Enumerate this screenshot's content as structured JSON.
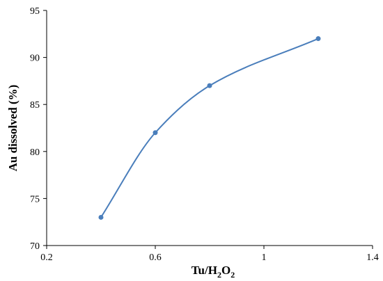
{
  "chart_data": {
    "type": "line",
    "title": "",
    "xlabel_parts": {
      "base": "Tu/H",
      "sub1": "2",
      "mid": "O",
      "sub2": "2"
    },
    "ylabel": "Au dissolved (%)",
    "xlim": [
      0.2,
      1.4
    ],
    "ylim": [
      70,
      95
    ],
    "xticks": [
      0.2,
      0.6,
      1.0,
      1.4
    ],
    "xtick_labels": [
      "0.2",
      "0.6",
      "1",
      "1.4"
    ],
    "yticks": [
      70,
      75,
      80,
      85,
      90,
      95
    ],
    "ytick_labels": [
      "70",
      "75",
      "80",
      "85",
      "90",
      "95"
    ],
    "grid": false,
    "series": [
      {
        "x": [
          0.4,
          0.6,
          0.8,
          1.2
        ],
        "y": [
          73,
          82,
          87,
          92
        ],
        "color": "#4a7ebb",
        "smooth": true,
        "marker": "circle"
      }
    ]
  }
}
